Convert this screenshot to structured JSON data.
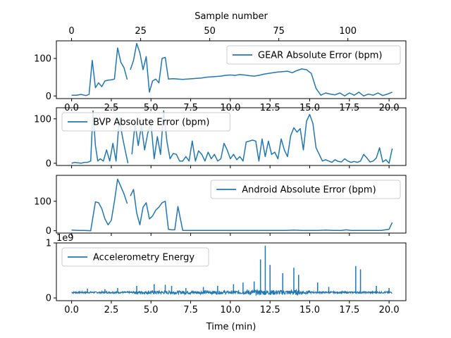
{
  "figure": {
    "top_axis_label": "Sample number",
    "bottom_axis_label": "Time (min)",
    "line_color": "#1f77b4"
  },
  "chart_data": [
    {
      "type": "line",
      "series": [
        {
          "name": "GEAR Absolute Error (bpm)"
        }
      ],
      "legend_position": "upper right",
      "xlim": [
        -0.96,
        21.06
      ],
      "ylim": [
        -7,
        147
      ],
      "yticks": [
        0,
        100
      ],
      "ytick_labels": [
        "0",
        "100"
      ],
      "xticks": [
        0,
        2.5,
        5,
        7.5,
        10,
        12.5,
        15,
        17.5,
        20
      ],
      "xtick_labels": [
        "0.0",
        "2.5",
        "5.0",
        "7.5",
        "10.0",
        "12.5",
        "15.0",
        "17.5",
        "20.0"
      ],
      "top_xticks": [
        0,
        25,
        50,
        75,
        100
      ],
      "top_xtick_labels": [
        "0",
        "25",
        "50",
        "75",
        "100"
      ],
      "top_xlim": [
        -5.5,
        121.0
      ],
      "segments": [
        {
          "x": [
            0.0,
            0.3,
            0.6,
            0.9,
            1.1,
            1.3,
            1.5,
            1.7,
            1.9,
            2.1,
            2.3,
            2.5,
            2.7,
            2.9,
            3.1,
            3.3,
            3.5
          ],
          "y": [
            2,
            2,
            4,
            1,
            4,
            95,
            22,
            35,
            25,
            40,
            42,
            43,
            45,
            128,
            90,
            75,
            44
          ]
        },
        {
          "x": [
            3.7,
            3.9,
            4.1,
            4.3,
            4.5,
            4.7,
            4.9,
            5.1,
            5.3,
            5.5,
            5.7,
            5.9,
            6.1,
            6.4,
            6.7,
            7.0,
            7.3,
            7.6,
            7.9,
            8.2,
            8.5,
            8.8,
            9.1,
            9.4,
            9.7,
            10.0,
            10.3,
            10.6,
            10.9,
            11.2,
            11.5,
            11.8,
            12.1,
            12.4,
            12.7,
            13.0,
            13.3,
            13.6,
            13.9,
            14.2,
            14.5,
            14.8,
            15.1,
            15.4,
            15.7,
            16.0,
            16.3,
            16.6,
            16.9,
            17.2,
            17.5,
            17.8,
            18.1,
            18.4,
            18.7,
            19.0,
            19.3,
            19.6,
            19.9,
            20.2
          ],
          "y": [
            70,
            95,
            140,
            115,
            70,
            105,
            10,
            40,
            45,
            35,
            100,
            103,
            45,
            46,
            45,
            44,
            45,
            46,
            47,
            48,
            50,
            51,
            52,
            53,
            55,
            56,
            55,
            57,
            56,
            54,
            53,
            55,
            58,
            60,
            62,
            64,
            65,
            66,
            62,
            68,
            72,
            70,
            60,
            20,
            2,
            8,
            5,
            3,
            8,
            0,
            8,
            2,
            10,
            0,
            5,
            2,
            8,
            1,
            5,
            10
          ]
        }
      ]
    },
    {
      "type": "line",
      "series": [
        {
          "name": "BVP Absolute Error (bpm)"
        }
      ],
      "legend_position": "upper left",
      "xlim": [
        -0.96,
        21.06
      ],
      "ylim": [
        -5,
        125
      ],
      "yticks": [
        0,
        100
      ],
      "ytick_labels": [
        "0",
        "100"
      ],
      "xticks": [
        0,
        2.5,
        5,
        7.5,
        10,
        12.5,
        15,
        17.5,
        20
      ],
      "segments": [
        {
          "x": [
            0.0,
            0.2,
            0.4,
            0.6,
            0.8,
            1.0,
            1.2,
            1.35,
            1.5,
            1.65,
            1.8,
            2.0,
            2.2,
            2.4,
            2.6,
            2.8,
            3.0,
            3.2,
            3.4,
            3.55
          ],
          "y": [
            0,
            2,
            1,
            0,
            2,
            2,
            5,
            118,
            40,
            5,
            10,
            5,
            30,
            5,
            45,
            5,
            100,
            60,
            25,
            0
          ]
        },
        {
          "x": [
            3.8,
            4.0,
            4.2,
            4.4,
            4.6,
            4.8,
            5.0,
            5.2,
            5.4,
            5.6,
            5.8,
            6.0,
            6.2,
            6.4,
            6.6,
            6.8,
            7.0,
            7.2,
            7.4,
            7.6,
            7.8,
            8.0,
            8.2,
            8.4,
            8.6,
            8.8,
            9.0,
            9.2,
            9.4,
            9.6,
            9.8,
            10.0,
            10.2,
            10.4,
            10.6,
            10.8,
            11.0,
            11.2,
            11.4,
            11.6,
            11.8,
            12.0,
            12.2,
            12.4,
            12.6,
            12.8,
            13.0,
            13.2,
            13.4,
            13.6,
            13.8,
            14.0,
            14.2,
            14.4,
            14.6,
            14.8,
            15.0,
            15.2,
            15.4,
            15.6,
            15.8,
            16.0,
            16.2,
            16.4,
            16.6,
            16.8,
            17.0,
            17.2,
            17.4,
            17.6,
            17.8,
            18.0,
            18.2,
            18.4,
            18.6,
            18.8,
            19.0,
            19.2,
            19.4,
            19.6,
            19.8,
            20.0,
            20.2
          ],
          "y": [
            20,
            90,
            40,
            85,
            30,
            68,
            90,
            10,
            60,
            20,
            118,
            50,
            10,
            22,
            20,
            5,
            5,
            15,
            5,
            50,
            5,
            28,
            20,
            5,
            25,
            10,
            20,
            5,
            10,
            45,
            30,
            10,
            20,
            8,
            15,
            5,
            48,
            50,
            52,
            50,
            5,
            55,
            15,
            50,
            20,
            25,
            10,
            55,
            30,
            15,
            62,
            80,
            70,
            78,
            30,
            95,
            110,
            90,
            35,
            20,
            5,
            8,
            5,
            2,
            8,
            4,
            3,
            10,
            5,
            2,
            4,
            2,
            5,
            20,
            12,
            3,
            5,
            12,
            35,
            3,
            8,
            0,
            33
          ]
        }
      ]
    },
    {
      "type": "line",
      "series": [
        {
          "name": "Android Absolute Error (bpm)"
        }
      ],
      "legend_position": "upper right",
      "xlim": [
        -0.96,
        21.06
      ],
      "ylim": [
        -8,
        188
      ],
      "yticks": [
        0,
        100
      ],
      "ytick_labels": [
        "0",
        "100"
      ],
      "xticks": [
        0,
        2.5,
        5,
        7.5,
        10,
        12.5,
        15,
        17.5,
        20
      ],
      "segments": [
        {
          "x": [
            0.0,
            0.4,
            0.8,
            1.2,
            1.5,
            1.7,
            1.9,
            2.1,
            2.3,
            2.5,
            2.7,
            2.9,
            3.1,
            3.3,
            3.5
          ],
          "y": [
            2,
            1,
            1,
            0,
            98,
            95,
            75,
            40,
            20,
            35,
            100,
            175,
            150,
            125,
            92
          ]
        },
        {
          "x": [
            3.7,
            3.9,
            4.1,
            4.3,
            4.5,
            4.7,
            4.9,
            5.1,
            5.3,
            5.5,
            5.7,
            5.9,
            6.1,
            6.3,
            6.5,
            6.7,
            7.0,
            7.5,
            8.0,
            8.5,
            9.0,
            9.5,
            10.0,
            10.5,
            11.0,
            11.5,
            12.0,
            12.5,
            13.0,
            13.5,
            14.0,
            14.5,
            15.0,
            15.5,
            16.0,
            16.5,
            17.0,
            17.3,
            17.6,
            18.0,
            18.5,
            19.0,
            19.5,
            20.0,
            20.2
          ],
          "y": [
            118,
            140,
            60,
            20,
            80,
            95,
            40,
            50,
            70,
            80,
            95,
            100,
            5,
            3,
            3,
            82,
            1,
            1,
            1,
            1,
            1,
            1,
            1,
            1,
            1,
            1,
            1,
            1,
            1,
            1,
            2,
            1,
            1,
            1,
            2,
            1,
            1,
            3,
            1,
            1,
            1,
            1,
            1,
            5,
            28
          ]
        }
      ]
    },
    {
      "type": "line",
      "series": [
        {
          "name": "Accelerometry Energy"
        }
      ],
      "legend_position": "upper left",
      "xlim": [
        -0.96,
        21.06
      ],
      "ylim": [
        -0.05,
        1.0
      ],
      "yticks": [
        0,
        1
      ],
      "ytick_labels": [
        "0",
        "1"
      ],
      "y_scale_label": "1e9",
      "xticks": [
        0,
        2.5,
        5,
        7.5,
        10,
        12.5,
        15,
        17.5,
        20
      ],
      "xtick_labels": [
        "0.0",
        "2.5",
        "5.0",
        "7.5",
        "10.0",
        "12.5",
        "15.0",
        "17.5",
        "20.0"
      ],
      "baseline": 0.1,
      "spikes": [
        {
          "x": 1.0,
          "y": 0.17
        },
        {
          "x": 2.1,
          "y": 0.16
        },
        {
          "x": 2.9,
          "y": 0.18
        },
        {
          "x": 4.1,
          "y": 0.22
        },
        {
          "x": 5.2,
          "y": 0.25
        },
        {
          "x": 5.9,
          "y": 0.24
        },
        {
          "x": 6.3,
          "y": 0.22
        },
        {
          "x": 7.2,
          "y": 0.18
        },
        {
          "x": 8.3,
          "y": 0.2
        },
        {
          "x": 9.2,
          "y": 0.22
        },
        {
          "x": 10.2,
          "y": 0.25
        },
        {
          "x": 10.8,
          "y": 0.28
        },
        {
          "x": 11.5,
          "y": 0.3
        },
        {
          "x": 11.9,
          "y": 0.7
        },
        {
          "x": 12.2,
          "y": 0.95
        },
        {
          "x": 12.5,
          "y": 0.6
        },
        {
          "x": 13.3,
          "y": 0.45
        },
        {
          "x": 14.0,
          "y": 0.55
        },
        {
          "x": 14.3,
          "y": 0.42
        },
        {
          "x": 15.5,
          "y": 0.28
        },
        {
          "x": 16.2,
          "y": 0.2
        },
        {
          "x": 17.9,
          "y": 0.58
        },
        {
          "x": 18.2,
          "y": 0.52
        },
        {
          "x": 19.2,
          "y": 0.22
        },
        {
          "x": 20.0,
          "y": 0.18
        }
      ]
    }
  ]
}
